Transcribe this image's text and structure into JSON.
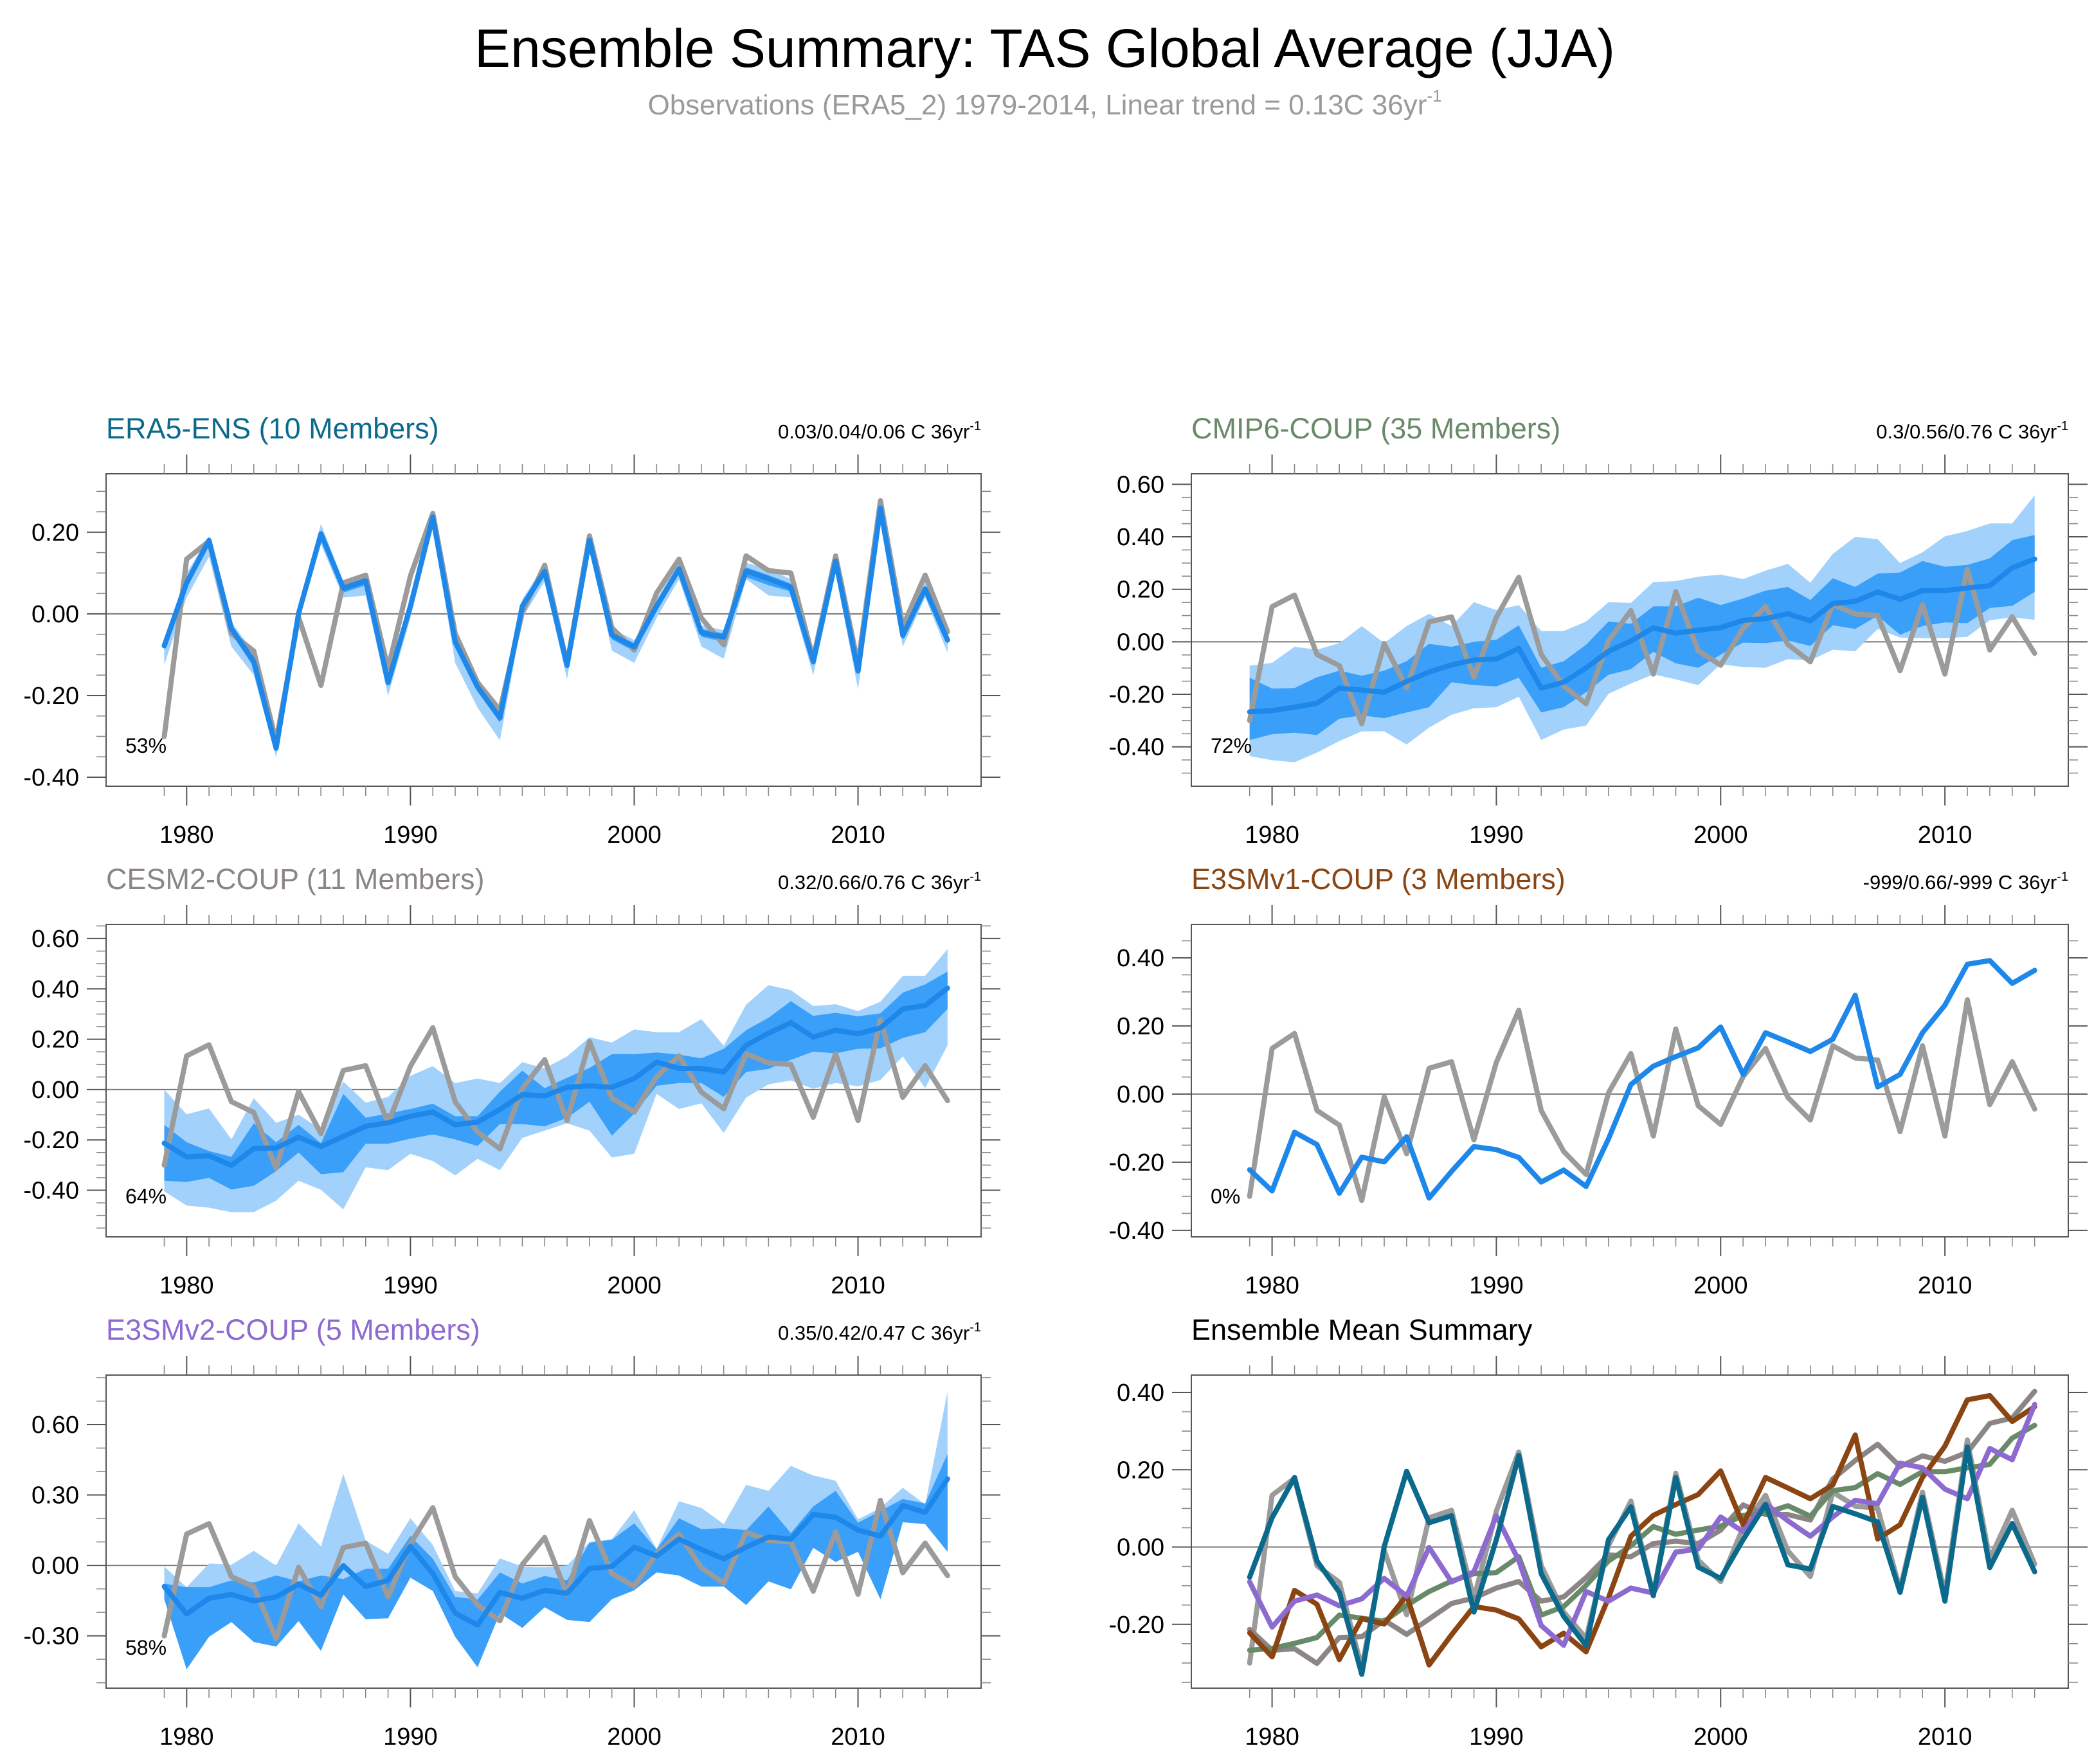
{
  "figure": {
    "title": "Ensemble Summary: TAS Global Average (JJA)",
    "subtitle_main": "Observations (ERA5_2) 1979-2014, Linear trend = 0.13C 36yr",
    "subtitle_sup": "-1"
  },
  "colors": {
    "obs": "#9b9b9b",
    "ens_mean_line": "#1e87ea",
    "band_inner": "#3a9ff9",
    "band_outer": "#a2d2fc",
    "ERA5": "#0b6a8c",
    "CMIP6": "#688a68",
    "CESM2": "#8c8586",
    "E3SMv1": "#8b4512",
    "E3SMv2": "#8d6ad0"
  },
  "chart_data": [
    {
      "type": "area",
      "id": "era5",
      "title": "ERA5-ENS (10 Members)",
      "title_color_key": "ERA5",
      "trend_text": "0.03/0.04/0.06 C 36yr",
      "trend_sup": "-1",
      "percent_label": "53%",
      "xlabel": "",
      "ylabel": "",
      "x": [
        1979,
        1980,
        1981,
        1982,
        1983,
        1984,
        1985,
        1986,
        1987,
        1988,
        1989,
        1990,
        1991,
        1992,
        1993,
        1994,
        1995,
        1996,
        1997,
        1998,
        1999,
        2000,
        2001,
        2002,
        2003,
        2004,
        2005,
        2006,
        2007,
        2008,
        2009,
        2010,
        2011,
        2012,
        2013,
        2014
      ],
      "xticks": [
        1980,
        1990,
        2000,
        2010
      ],
      "xtick_labels": [
        "1980",
        "1990",
        "2000",
        "2010"
      ],
      "xlim": [
        1976.4,
        2015.5
      ],
      "ylim": [
        -0.422,
        0.343
      ],
      "yticks": [
        0.2,
        0.0,
        -0.2,
        -0.4
      ],
      "ytick_labels": [
        "0.20",
        "0.00",
        "-0.20",
        "-0.40"
      ],
      "yminor": 0.05,
      "ens_mean": [
        -0.078,
        0.076,
        0.18,
        -0.036,
        -0.117,
        -0.329,
        0.001,
        0.196,
        0.063,
        0.081,
        -0.168,
        0.019,
        0.237,
        -0.069,
        -0.179,
        -0.255,
        0.019,
        0.104,
        -0.126,
        0.18,
        -0.052,
        -0.081,
        0.019,
        0.11,
        -0.046,
        -0.057,
        0.105,
        0.086,
        0.065,
        -0.117,
        0.129,
        -0.14,
        0.259,
        -0.053,
        0.061,
        -0.064
      ],
      "inner_upper": [
        -0.068,
        0.086,
        0.186,
        -0.028,
        -0.105,
        -0.32,
        0.01,
        0.205,
        0.072,
        0.09,
        -0.16,
        0.028,
        0.244,
        -0.06,
        -0.17,
        -0.246,
        0.028,
        0.112,
        -0.118,
        0.188,
        -0.044,
        -0.072,
        0.028,
        0.118,
        -0.037,
        -0.048,
        0.114,
        0.095,
        0.074,
        -0.108,
        0.137,
        -0.131,
        0.266,
        -0.045,
        0.069,
        -0.056
      ],
      "inner_lower": [
        -0.09,
        0.062,
        0.168,
        -0.048,
        -0.13,
        -0.338,
        -0.008,
        0.186,
        0.052,
        0.07,
        -0.178,
        0.008,
        0.228,
        -0.08,
        -0.19,
        -0.266,
        0.008,
        0.094,
        -0.136,
        0.17,
        -0.062,
        -0.092,
        0.006,
        0.1,
        -0.056,
        -0.068,
        0.09,
        0.07,
        0.055,
        -0.128,
        0.12,
        -0.15,
        0.25,
        -0.064,
        0.052,
        -0.074
      ],
      "outer_upper": [
        -0.06,
        0.1,
        0.19,
        -0.02,
        -0.095,
        -0.312,
        0.02,
        0.22,
        0.08,
        0.098,
        -0.15,
        0.036,
        0.252,
        -0.052,
        -0.16,
        -0.236,
        0.036,
        0.12,
        -0.108,
        0.196,
        -0.036,
        -0.064,
        0.036,
        0.126,
        -0.028,
        -0.04,
        0.125,
        0.11,
        0.085,
        -0.1,
        0.145,
        -0.122,
        0.275,
        -0.038,
        0.078,
        -0.048
      ],
      "outer_lower": [
        -0.125,
        0.04,
        0.14,
        -0.08,
        -0.15,
        -0.352,
        -0.02,
        0.17,
        0.04,
        0.045,
        -0.2,
        -0.01,
        0.21,
        -0.12,
        -0.23,
        -0.31,
        -0.01,
        0.08,
        -0.16,
        0.165,
        -0.09,
        -0.12,
        -0.01,
        0.085,
        -0.08,
        -0.11,
        0.085,
        0.045,
        0.04,
        -0.15,
        0.1,
        -0.185,
        0.225,
        -0.08,
        0.04,
        -0.095
      ],
      "obs": [
        -0.3,
        0.134,
        0.178,
        -0.048,
        -0.091,
        -0.312,
        -0.008,
        -0.175,
        0.076,
        0.095,
        -0.134,
        0.093,
        0.246,
        -0.048,
        -0.168,
        -0.236,
        0.004,
        0.119,
        -0.123,
        0.191,
        -0.034,
        -0.089,
        0.051,
        0.134,
        -0.01,
        -0.076,
        0.142,
        0.106,
        0.1,
        -0.11,
        0.142,
        -0.123,
        0.277,
        -0.031,
        0.095,
        -0.044
      ]
    },
    {
      "type": "area",
      "id": "cmip6",
      "title": "CMIP6-COUP (35 Members)",
      "title_color_key": "CMIP6",
      "trend_text": "0.3/0.56/0.76 C 36yr",
      "trend_sup": "-1",
      "percent_label": "72%",
      "xlabel": "",
      "ylabel": "",
      "xticks": [
        1980,
        1990,
        2000,
        2010
      ],
      "xtick_labels": [
        "1980",
        "1990",
        "2000",
        "2010"
      ],
      "xlim": [
        1976.4,
        2015.5
      ],
      "ylim": [
        -0.55,
        0.64
      ],
      "yticks": [
        0.6,
        0.4,
        0.2,
        0.0,
        -0.2,
        -0.4
      ],
      "ytick_labels": [
        "0.60",
        "0.40",
        "0.20",
        "0.00",
        "-0.20",
        "-0.40"
      ],
      "yminor": 0.05,
      "ens_mean": [
        -0.267,
        -0.262,
        -0.249,
        -0.234,
        -0.176,
        -0.184,
        -0.192,
        -0.151,
        -0.115,
        -0.088,
        -0.069,
        -0.066,
        -0.025,
        -0.176,
        -0.154,
        -0.099,
        -0.036,
        0.003,
        0.053,
        0.033,
        0.044,
        0.054,
        0.082,
        0.088,
        0.107,
        0.08,
        0.146,
        0.154,
        0.19,
        0.162,
        0.195,
        0.195,
        0.205,
        0.214,
        0.282,
        0.315
      ],
      "inner_upper": [
        -0.137,
        -0.178,
        -0.176,
        -0.135,
        -0.11,
        -0.129,
        -0.11,
        -0.074,
        -0.008,
        -0.019,
        0.0,
        0.008,
        0.063,
        -0.099,
        -0.074,
        -0.011,
        0.077,
        0.069,
        0.135,
        0.135,
        0.168,
        0.14,
        0.165,
        0.195,
        0.209,
        0.159,
        0.242,
        0.209,
        0.26,
        0.264,
        0.308,
        0.286,
        0.293,
        0.318,
        0.387,
        0.407
      ],
      "inner_lower": [
        -0.374,
        -0.352,
        -0.346,
        -0.355,
        -0.293,
        -0.28,
        -0.291,
        -0.269,
        -0.249,
        -0.154,
        -0.165,
        -0.17,
        -0.137,
        -0.269,
        -0.249,
        -0.192,
        -0.126,
        -0.104,
        -0.038,
        -0.082,
        -0.099,
        -0.049,
        -0.003,
        -0.005,
        0.005,
        -0.016,
        0.063,
        0.049,
        0.099,
        0.027,
        0.06,
        0.074,
        0.071,
        0.129,
        0.137,
        0.19
      ],
      "outer_upper": [
        -0.091,
        -0.08,
        -0.019,
        -0.03,
        -0.005,
        0.06,
        -0.005,
        0.06,
        0.107,
        0.06,
        0.151,
        0.121,
        0.14,
        0.041,
        0.041,
        0.077,
        0.151,
        0.148,
        0.228,
        0.231,
        0.248,
        0.256,
        0.239,
        0.271,
        0.297,
        0.225,
        0.335,
        0.4,
        0.391,
        0.3,
        0.341,
        0.402,
        0.422,
        0.451,
        0.451,
        0.558
      ],
      "outer_lower": [
        -0.435,
        -0.451,
        -0.459,
        -0.422,
        -0.378,
        -0.341,
        -0.341,
        -0.391,
        -0.327,
        -0.278,
        -0.253,
        -0.249,
        -0.209,
        -0.374,
        -0.334,
        -0.319,
        -0.198,
        -0.159,
        -0.124,
        -0.143,
        -0.165,
        -0.085,
        -0.096,
        -0.099,
        -0.066,
        -0.071,
        -0.03,
        -0.036,
        0.049,
        0.016,
        0.014,
        0.014,
        0.019,
        0.082,
        0.093,
        0.084
      ],
      "obs_ref": "era5"
    },
    {
      "type": "area",
      "id": "cesm2",
      "title": "CESM2-COUP (11 Members)",
      "title_color_key": "CESM2",
      "trend_text": "0.32/0.66/0.76 C 36yr",
      "trend_sup": "-1",
      "percent_label": "64%",
      "xlabel": "",
      "ylabel": "",
      "xticks": [
        1980,
        1990,
        2000,
        2010
      ],
      "xtick_labels": [
        "1980",
        "1990",
        "2000",
        "2010"
      ],
      "xlim": [
        1976.4,
        2015.5
      ],
      "ylim": [
        -0.585,
        0.656
      ],
      "yticks": [
        0.6,
        0.4,
        0.2,
        0.0,
        -0.2,
        -0.4
      ],
      "ytick_labels": [
        "0.60",
        "0.40",
        "0.20",
        "0.00",
        "-0.20",
        "-0.40"
      ],
      "yminor": 0.05,
      "ens_mean": [
        -0.213,
        -0.267,
        -0.263,
        -0.301,
        -0.234,
        -0.232,
        -0.189,
        -0.226,
        -0.186,
        -0.146,
        -0.132,
        -0.106,
        -0.089,
        -0.14,
        -0.129,
        -0.079,
        -0.02,
        -0.025,
        0.009,
        0.015,
        0.009,
        0.044,
        0.109,
        0.084,
        0.084,
        0.07,
        0.176,
        0.224,
        0.266,
        0.208,
        0.236,
        0.222,
        0.245,
        0.32,
        0.334,
        0.403
      ],
      "inner_upper": [
        -0.14,
        -0.209,
        -0.244,
        -0.267,
        -0.134,
        -0.209,
        -0.14,
        -0.213,
        -0.017,
        -0.112,
        -0.095,
        -0.077,
        -0.056,
        -0.106,
        -0.106,
        -0.008,
        0.075,
        0.006,
        0.047,
        0.086,
        0.141,
        0.141,
        0.147,
        0.139,
        0.124,
        0.162,
        0.236,
        0.285,
        0.351,
        0.293,
        0.305,
        0.291,
        0.303,
        0.385,
        0.418,
        0.469
      ],
      "inner_lower": [
        -0.362,
        -0.367,
        -0.351,
        -0.397,
        -0.382,
        -0.324,
        -0.25,
        -0.336,
        -0.328,
        -0.215,
        -0.215,
        -0.195,
        -0.178,
        -0.198,
        -0.224,
        -0.137,
        -0.137,
        -0.146,
        -0.112,
        -0.048,
        -0.183,
        -0.095,
        0.015,
        0.026,
        0.026,
        -0.029,
        0.07,
        0.082,
        0.118,
        0.151,
        0.144,
        0.162,
        0.164,
        0.205,
        0.228,
        0.32
      ],
      "outer_upper": [
        0.0,
        -0.098,
        -0.075,
        -0.198,
        -0.034,
        -0.132,
        -0.1,
        -0.158,
        0.032,
        -0.052,
        -0.029,
        0.055,
        0.093,
        0.026,
        0.044,
        0.026,
        0.109,
        0.084,
        0.132,
        0.208,
        0.187,
        0.239,
        0.228,
        0.228,
        0.28,
        0.174,
        0.337,
        0.415,
        0.395,
        0.332,
        0.339,
        0.312,
        0.349,
        0.452,
        0.452,
        0.558
      ],
      "outer_lower": [
        -0.404,
        -0.461,
        -0.469,
        -0.487,
        -0.487,
        -0.441,
        -0.362,
        -0.398,
        -0.476,
        -0.309,
        -0.32,
        -0.255,
        -0.284,
        -0.341,
        -0.275,
        -0.32,
        -0.192,
        -0.163,
        -0.134,
        -0.163,
        -0.27,
        -0.255,
        -0.017,
        -0.077,
        -0.055,
        -0.172,
        -0.032,
        0.021,
        0.036,
        0.003,
        0.026,
        0.013,
        0.038,
        0.132,
        0.006,
        0.176
      ],
      "obs_ref": "era5"
    },
    {
      "type": "line",
      "id": "e3smv1",
      "title": "E3SMv1-COUP (3 Members)",
      "title_color_key": "E3SMv1",
      "trend_text": "-999/0.66/-999 C 36yr",
      "trend_sup": "-1",
      "percent_label": "0%",
      "xlabel": "",
      "ylabel": "",
      "xticks": [
        1980,
        1990,
        2000,
        2010
      ],
      "xtick_labels": [
        "1980",
        "1990",
        "2000",
        "2010"
      ],
      "xlim": [
        1976.4,
        2015.5
      ],
      "ylim": [
        -0.419,
        0.498
      ],
      "yticks": [
        0.4,
        0.2,
        0.0,
        -0.2,
        -0.4
      ],
      "ytick_labels": [
        "0.40",
        "0.20",
        "0.00",
        "-0.20",
        "-0.40"
      ],
      "yminor": 0.05,
      "ens_mean": [
        -0.222,
        -0.284,
        -0.112,
        -0.148,
        -0.291,
        -0.185,
        -0.199,
        -0.125,
        -0.305,
        -0.227,
        -0.154,
        -0.163,
        -0.186,
        -0.258,
        -0.223,
        -0.271,
        -0.131,
        0.028,
        0.082,
        0.11,
        0.136,
        0.197,
        0.058,
        0.18,
        0.153,
        0.125,
        0.161,
        0.29,
        0.021,
        0.058,
        0.18,
        0.261,
        0.381,
        0.392,
        0.325,
        0.363
      ],
      "obs_ref": "era5"
    },
    {
      "type": "area",
      "id": "e3smv2",
      "title": "E3SMv2-COUP (5 Members)",
      "title_color_key": "E3SMv2",
      "trend_text": "0.35/0.42/0.47 C 36yr",
      "trend_sup": "-1",
      "percent_label": "58%",
      "xlabel": "",
      "ylabel": "",
      "xticks": [
        1980,
        1990,
        2000,
        2010
      ],
      "xtick_labels": [
        "1980",
        "1990",
        "2000",
        "2010"
      ],
      "xlim": [
        1976.4,
        2015.5
      ],
      "ylim": [
        -0.523,
        0.811
      ],
      "yticks": [
        0.6,
        0.3,
        0.0,
        -0.3
      ],
      "ytick_labels": [
        "0.60",
        "0.30",
        "0.00",
        "-0.30"
      ],
      "yminor": 0.1,
      "ens_mean": [
        -0.09,
        -0.207,
        -0.14,
        -0.124,
        -0.152,
        -0.134,
        -0.081,
        -0.127,
        -0.001,
        -0.09,
        -0.064,
        0.081,
        -0.035,
        -0.203,
        -0.254,
        -0.115,
        -0.14,
        -0.106,
        -0.119,
        -0.013,
        -0.005,
        0.078,
        0.04,
        0.112,
        0.068,
        0.028,
        0.078,
        0.121,
        0.112,
        0.217,
        0.205,
        0.15,
        0.125,
        0.255,
        0.226,
        0.369
      ],
      "inner_upper": [
        -0.077,
        -0.093,
        -0.093,
        -0.064,
        -0.073,
        -0.043,
        -0.068,
        -0.043,
        -0.058,
        -0.014,
        -0.014,
        0.125,
        0.028,
        -0.134,
        -0.146,
        -0.03,
        -0.077,
        -0.045,
        -0.064,
        0.096,
        0.109,
        0.179,
        0.068,
        0.201,
        0.154,
        0.159,
        0.15,
        0.251,
        0.138,
        0.251,
        0.318,
        0.182,
        0.232,
        0.283,
        0.264,
        0.475
      ],
      "inner_lower": [
        -0.144,
        -0.443,
        -0.304,
        -0.241,
        -0.326,
        -0.346,
        -0.237,
        -0.364,
        -0.124,
        -0.229,
        -0.225,
        -0.052,
        -0.109,
        -0.304,
        -0.434,
        -0.203,
        -0.266,
        -0.178,
        -0.232,
        -0.241,
        -0.144,
        -0.106,
        -0.03,
        -0.043,
        -0.09,
        -0.09,
        -0.169,
        -0.068,
        -0.102,
        0.075,
        0.015,
        0.058,
        -0.144,
        0.184,
        0.176,
        0.058
      ],
      "outer_upper": [
        -0.005,
        -0.093,
        0.008,
        0.003,
        0.062,
        -0.001,
        0.179,
        0.081,
        0.39,
        0.106,
        0.049,
        0.201,
        0.087,
        -0.109,
        -0.119,
        0.03,
        -0.005,
        -0.008,
        -0.001,
        0.1,
        0.112,
        0.235,
        0.071,
        0.273,
        0.245,
        0.176,
        0.343,
        0.318,
        0.424,
        0.383,
        0.361,
        0.197,
        0.245,
        0.331,
        0.26,
        0.74
      ],
      "outer_lower": [
        -0.144,
        -0.443,
        -0.304,
        -0.241,
        -0.326,
        -0.346,
        -0.237,
        -0.364,
        -0.124,
        -0.229,
        -0.225,
        -0.052,
        -0.109,
        -0.304,
        -0.434,
        -0.203,
        -0.266,
        -0.178,
        -0.232,
        -0.241,
        -0.144,
        -0.106,
        -0.03,
        -0.043,
        -0.09,
        -0.09,
        -0.169,
        -0.068,
        -0.102,
        0.075,
        0.015,
        0.058,
        -0.144,
        0.184,
        0.176,
        0.058
      ],
      "obs_ref": "era5"
    },
    {
      "type": "line",
      "id": "summary",
      "title": "Ensemble Mean Summary",
      "title_color": "#000000",
      "xlabel": "",
      "ylabel": "",
      "xticks": [
        1980,
        1990,
        2000,
        2010
      ],
      "xtick_labels": [
        "1980",
        "1990",
        "2000",
        "2010"
      ],
      "xlim": [
        1976.4,
        2015.5
      ],
      "ylim": [
        -0.365,
        0.445
      ],
      "yticks": [
        0.4,
        0.2,
        0.0,
        -0.2
      ],
      "ytick_labels": [
        "0.40",
        "0.20",
        "0.00",
        "-0.20"
      ],
      "yminor": 0.05,
      "series": [
        {
          "name": "Observations (ERA5_2)",
          "color_key": "obs",
          "ref": "era5.obs"
        },
        {
          "name": "CESM2-COUP",
          "color_key": "CESM2",
          "ref": "cesm2.ens_mean"
        },
        {
          "name": "CMIP6-COUP",
          "color_key": "CMIP6",
          "ref": "cmip6.ens_mean"
        },
        {
          "name": "E3SMv1-COUP",
          "color_key": "E3SMv1",
          "ref": "e3smv1.ens_mean"
        },
        {
          "name": "E3SMv2-COUP",
          "color_key": "E3SMv2",
          "ref": "e3smv2.ens_mean"
        },
        {
          "name": "ERA5-ENS",
          "color_key": "ERA5",
          "ref": "era5.ens_mean"
        }
      ]
    }
  ]
}
